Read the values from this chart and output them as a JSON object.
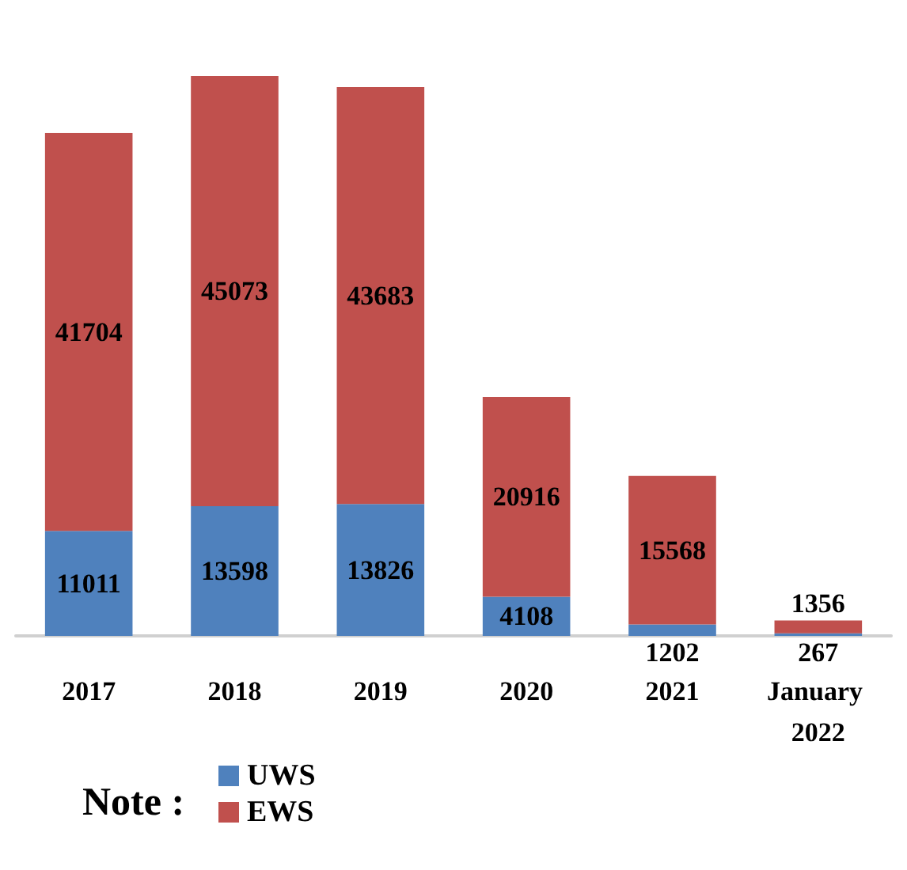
{
  "chart_data": {
    "type": "bar",
    "stacked": true,
    "data_labels": true,
    "legend": "bottom left",
    "legend_title": "Note :",
    "categories": [
      "2017",
      "2018",
      "2019",
      "2020",
      "2021",
      "January 2022"
    ],
    "series": [
      {
        "name": "UWS",
        "color": "#4f81bd",
        "values": [
          11011,
          13598,
          13826,
          4108,
          1202,
          267
        ]
      },
      {
        "name": "EWS",
        "color": "#c0504d",
        "values": [
          41704,
          45073,
          43683,
          20916,
          15568,
          1356
        ]
      }
    ]
  }
}
